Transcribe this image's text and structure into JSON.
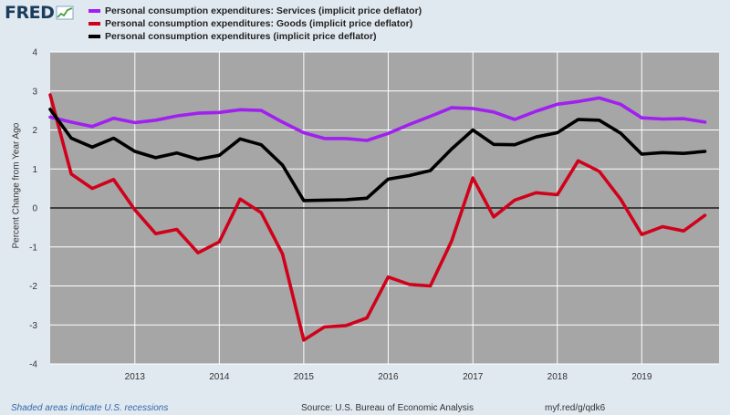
{
  "brand": {
    "logo_text": "FRED",
    "logo_icon": "chart-line-icon"
  },
  "chart_data": {
    "type": "line",
    "ylabel": "Percent Change from Year Ago",
    "ylim": [
      -4,
      4
    ],
    "yticks": [
      "4",
      "3",
      "2",
      "1",
      "0",
      "-1",
      "-2",
      "-3",
      "-4"
    ],
    "xtick_labels": [
      "2013",
      "2014",
      "2015",
      "2016",
      "2017",
      "2018",
      "2019"
    ],
    "grid": true,
    "legend_position": "top-left",
    "x": [
      "2012-01-01",
      "2012-04-01",
      "2012-07-01",
      "2012-10-01",
      "2013-01-01",
      "2013-04-01",
      "2013-07-01",
      "2013-10-01",
      "2014-01-01",
      "2014-04-01",
      "2014-07-01",
      "2014-10-01",
      "2015-01-01",
      "2015-04-01",
      "2015-07-01",
      "2015-10-01",
      "2016-01-01",
      "2016-04-01",
      "2016-07-01",
      "2016-10-01",
      "2017-01-01",
      "2017-04-01",
      "2017-07-01",
      "2017-10-01",
      "2018-01-01",
      "2018-04-01",
      "2018-07-01",
      "2018-10-01",
      "2019-01-01",
      "2019-04-01",
      "2019-07-01",
      "2019-10-01"
    ],
    "series": [
      {
        "name": "Personal consumption expenditures: Services (implicit price deflator)",
        "color": "#a020f0",
        "values": [
          2.33,
          2.2,
          2.09,
          2.3,
          2.19,
          2.25,
          2.36,
          2.43,
          2.45,
          2.52,
          2.5,
          2.2,
          1.93,
          1.78,
          1.78,
          1.73,
          1.91,
          2.14,
          2.35,
          2.57,
          2.55,
          2.46,
          2.27,
          2.48,
          2.66,
          2.73,
          2.82,
          2.66,
          2.31,
          2.28,
          2.29,
          2.2
        ]
      },
      {
        "name": "Personal consumption expenditures: Goods (implicit price deflator)",
        "color": "#d0021b",
        "values": [
          2.9,
          0.87,
          0.5,
          0.73,
          -0.05,
          -0.66,
          -0.55,
          -1.15,
          -0.87,
          0.23,
          -0.12,
          -1.18,
          -3.39,
          -3.05,
          -3.02,
          -2.82,
          -1.77,
          -1.96,
          -2.0,
          -0.85,
          0.77,
          -0.23,
          0.2,
          0.39,
          0.34,
          1.21,
          0.94,
          0.23,
          -0.68,
          -0.48,
          -0.59,
          -0.19
        ]
      },
      {
        "name": "Personal consumption expenditures (implicit price deflator)",
        "color": "#000000",
        "values": [
          2.53,
          1.79,
          1.56,
          1.79,
          1.45,
          1.29,
          1.41,
          1.25,
          1.35,
          1.77,
          1.62,
          1.1,
          0.19,
          0.2,
          0.21,
          0.25,
          0.74,
          0.83,
          0.96,
          1.51,
          2.0,
          1.63,
          1.62,
          1.82,
          1.93,
          2.27,
          2.25,
          1.92,
          1.38,
          1.42,
          1.4,
          1.45
        ]
      }
    ]
  },
  "footer": {
    "recession_note": "Shaded areas indicate U.S. recessions",
    "source": "Source: U.S. Bureau of Economic Analysis",
    "url": "myf.red/g/qdk6"
  }
}
